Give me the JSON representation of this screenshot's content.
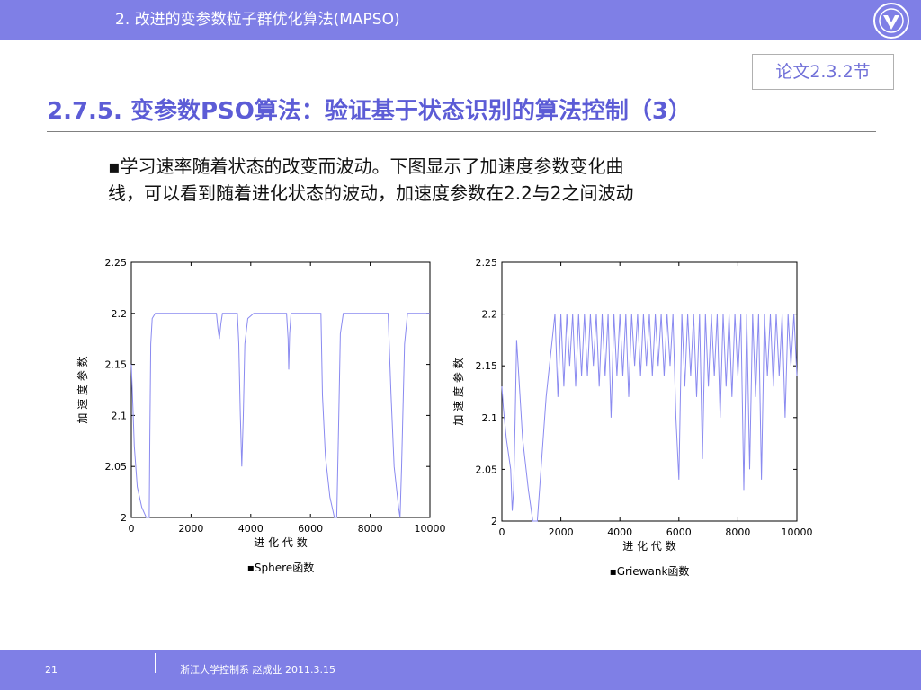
{
  "header": {
    "title": "2. 改进的变参数粒子群优化算法(MAPSO)",
    "logo_icon": "university-seal-icon"
  },
  "section_ref": "论文2.3.2节",
  "slide_title": "2.7.5. 变参数PSO算法：验证基于状态识别的算法控制（3）",
  "body": {
    "line1": "▪学习速率随着状态的改变而波动。下图显示了加速度参数变化曲",
    "line2": "线，可以看到随着进化状态的波动，加速度参数在2.2与2之间波动"
  },
  "footer": {
    "page_number": "21",
    "text": "浙江大学控制系 赵成业 2011.3.15"
  },
  "colors": {
    "bar": "#7f7fe6",
    "title": "#5c5cd6",
    "line": "#8a8af0"
  },
  "chart_data": [
    {
      "type": "line",
      "xlabel": "进 化 代 数",
      "ylabel": "加 速 度 参 数",
      "caption": "▪Sphere函数",
      "xlim": [
        0,
        10000
      ],
      "ylim": [
        2,
        2.25
      ],
      "xticks": [
        0,
        2000,
        4000,
        6000,
        8000,
        10000
      ],
      "yticks": [
        2,
        2.05,
        2.1,
        2.15,
        2.2,
        2.25
      ],
      "ytick_labels": [
        "2",
        "2.05",
        "2.1",
        "2.15",
        "2.2",
        "2.25"
      ],
      "x": [
        0,
        50,
        100,
        200,
        350,
        500,
        600,
        620,
        650,
        700,
        800,
        1000,
        1500,
        2500,
        2850,
        2900,
        2950,
        3000,
        3050,
        3100,
        3500,
        3550,
        3600,
        3650,
        3700,
        3750,
        3800,
        3900,
        4100,
        5000,
        5200,
        5250,
        5270,
        5300,
        5350,
        5400,
        6000,
        6350,
        6400,
        6500,
        6650,
        6800,
        6880,
        6950,
        7000,
        7100,
        7300,
        8600,
        8700,
        8800,
        8950,
        9000,
        9050,
        9150,
        9250,
        9400,
        10000
      ],
      "y": [
        2.15,
        2.11,
        2.07,
        2.03,
        2.01,
        2.0,
        2.0,
        2.08,
        2.17,
        2.195,
        2.2,
        2.2,
        2.2,
        2.2,
        2.2,
        2.185,
        2.175,
        2.19,
        2.2,
        2.2,
        2.2,
        2.2,
        2.17,
        2.1,
        2.05,
        2.1,
        2.17,
        2.195,
        2.2,
        2.2,
        2.2,
        2.175,
        2.145,
        2.18,
        2.2,
        2.2,
        2.2,
        2.2,
        2.12,
        2.06,
        2.02,
        2.0,
        2.0,
        2.1,
        2.18,
        2.2,
        2.2,
        2.2,
        2.12,
        2.05,
        2.01,
        2.0,
        2.05,
        2.17,
        2.2,
        2.2,
        2.2
      ]
    },
    {
      "type": "line",
      "xlabel": "进 化 代 数",
      "ylabel": "加 速 度 参 数",
      "caption": "▪Griewank函数",
      "xlim": [
        0,
        10000
      ],
      "ylim": [
        2,
        2.25
      ],
      "xticks": [
        0,
        2000,
        4000,
        6000,
        8000,
        10000
      ],
      "yticks": [
        2,
        2.05,
        2.1,
        2.15,
        2.2,
        2.25
      ],
      "ytick_labels": [
        "2",
        "2.05",
        "2.1",
        "2.15",
        "2.2",
        "2.25"
      ],
      "x": [
        0,
        50,
        150,
        300,
        350,
        400,
        450,
        500,
        700,
        900,
        1000,
        1050,
        1100,
        1150,
        1200,
        1500,
        1800,
        1900,
        2000,
        2100,
        2200,
        2300,
        2400,
        2500,
        2600,
        2700,
        2800,
        2900,
        3000,
        3100,
        3200,
        3300,
        3400,
        3500,
        3600,
        3700,
        3800,
        3900,
        4000,
        4100,
        4200,
        4300,
        4400,
        4500,
        4600,
        4700,
        4800,
        4900,
        5000,
        5100,
        5200,
        5300,
        5400,
        5500,
        5600,
        5700,
        5800,
        5900,
        6000,
        6100,
        6200,
        6300,
        6400,
        6500,
        6600,
        6700,
        6800,
        6900,
        7000,
        7100,
        7200,
        7300,
        7400,
        7500,
        7600,
        7700,
        7800,
        7900,
        8000,
        8100,
        8200,
        8300,
        8400,
        8500,
        8600,
        8700,
        8800,
        8900,
        9000,
        9100,
        9200,
        9300,
        9400,
        9500,
        9600,
        9700,
        9800,
        9900,
        10000
      ],
      "y": [
        2.13,
        2.11,
        2.08,
        2.05,
        2.01,
        2.03,
        2.1,
        2.175,
        2.08,
        2.03,
        2.01,
        2.0,
        2.0,
        2.0,
        2.0,
        2.12,
        2.2,
        2.12,
        2.2,
        2.13,
        2.2,
        2.15,
        2.2,
        2.13,
        2.2,
        2.14,
        2.2,
        2.14,
        2.2,
        2.15,
        2.2,
        2.13,
        2.2,
        2.14,
        2.2,
        2.1,
        2.2,
        2.14,
        2.2,
        2.14,
        2.2,
        2.12,
        2.2,
        2.15,
        2.2,
        2.14,
        2.2,
        2.15,
        2.2,
        2.14,
        2.2,
        2.15,
        2.2,
        2.14,
        2.2,
        2.15,
        2.2,
        2.1,
        2.04,
        2.2,
        2.13,
        2.2,
        2.14,
        2.2,
        2.12,
        2.2,
        2.06,
        2.2,
        2.13,
        2.2,
        2.14,
        2.2,
        2.1,
        2.2,
        2.13,
        2.2,
        2.12,
        2.2,
        2.14,
        2.2,
        2.03,
        2.2,
        2.05,
        2.2,
        2.12,
        2.2,
        2.04,
        2.2,
        2.14,
        2.2,
        2.13,
        2.2,
        2.14,
        2.2,
        2.1,
        2.2,
        2.15,
        2.2,
        2.14
      ]
    }
  ]
}
